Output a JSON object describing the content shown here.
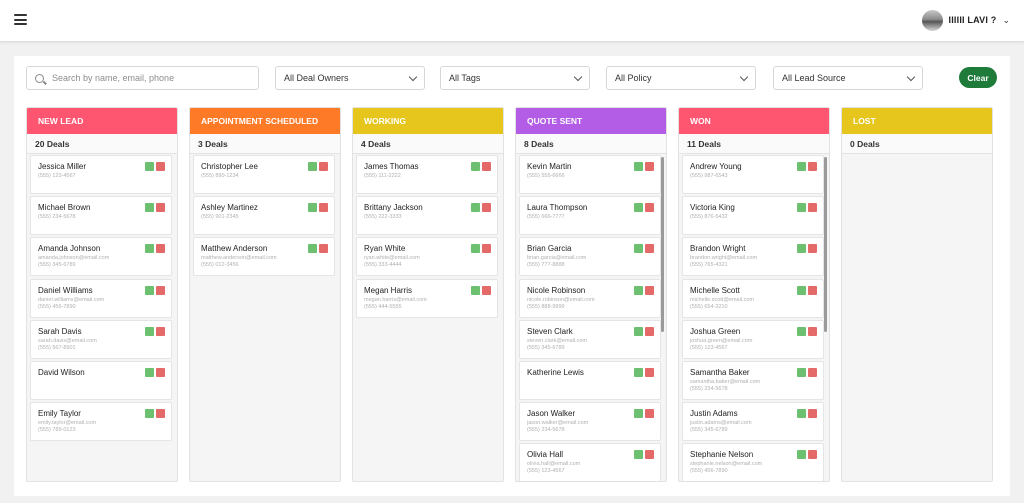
{
  "topbar": {
    "menu_icon": "hamburger-icon",
    "user_name": "IIIIII LAVI ?",
    "user_caret": "⌄"
  },
  "filters": {
    "search_placeholder": "Search by name, email, phone",
    "deal_owners": "All Deal Owners",
    "tags": "All Tags",
    "policy": "All Policy",
    "lead_source": "All Lead Source",
    "clear_label": "Clear"
  },
  "colors": {
    "new_lead": "#fe5570",
    "appointment_scheduled": "#fe7a27",
    "working": "#e6c51d",
    "quote_sent": "#b35de6",
    "won": "#fe5570",
    "lost": "#e6c51d",
    "clear_button": "#1e7b3a"
  },
  "columns": [
    {
      "title": "NEW LEAD",
      "count": "20 Deals",
      "cards": [
        {
          "name": "Jessica Miller",
          "email": "",
          "phone": "(555) 123-4567"
        },
        {
          "name": "Michael Brown",
          "email": "",
          "phone": "(555) 234-5678"
        },
        {
          "name": "Amanda Johnson",
          "email": "amanda.johnson@email.com",
          "phone": "(555) 345-6789"
        },
        {
          "name": "Daniel Williams",
          "email": "daniel.williams@email.com",
          "phone": "(555) 456-7890"
        },
        {
          "name": "Sarah Davis",
          "email": "sarah.davis@email.com",
          "phone": "(555) 567-8901"
        },
        {
          "name": "David Wilson",
          "email": "",
          "phone": ""
        },
        {
          "name": "Emily Taylor",
          "email": "emily.taylor@email.com",
          "phone": "(555) 789-0123"
        }
      ]
    },
    {
      "title": "APPOINTMENT SCHEDULED",
      "count": "3 Deals",
      "cards": [
        {
          "name": "Christopher Lee",
          "email": "",
          "phone": "(555) 890-1234"
        },
        {
          "name": "Ashley Martinez",
          "email": "",
          "phone": "(555) 901-2345"
        },
        {
          "name": "Matthew Anderson",
          "email": "matthew.anderson@email.com",
          "phone": "(555) 012-3456"
        }
      ]
    },
    {
      "title": "WORKING",
      "count": "4 Deals",
      "cards": [
        {
          "name": "James Thomas",
          "email": "",
          "phone": "(555) 111-2222"
        },
        {
          "name": "Brittany Jackson",
          "email": "",
          "phone": "(555) 222-3333"
        },
        {
          "name": "Ryan White",
          "email": "ryan.white@email.com",
          "phone": "(555) 333-4444"
        },
        {
          "name": "Megan Harris",
          "email": "megan.harris@email.com",
          "phone": "(555) 444-5555"
        }
      ]
    },
    {
      "title": "QUOTE SENT",
      "count": "8 Deals",
      "cards": [
        {
          "name": "Kevin Martin",
          "email": "",
          "phone": "(555) 555-6666"
        },
        {
          "name": "Laura Thompson",
          "email": "",
          "phone": "(555) 666-7777"
        },
        {
          "name": "Brian Garcia",
          "email": "brian.garcia@email.com",
          "phone": "(555) 777-8888"
        },
        {
          "name": "Nicole Robinson",
          "email": "nicole.robinson@email.com",
          "phone": "(555) 888-9999"
        },
        {
          "name": "Steven Clark",
          "email": "steven.clark@email.com",
          "phone": "(555) 345-6789"
        },
        {
          "name": "Katherine Lewis",
          "email": "",
          "phone": ""
        },
        {
          "name": "Jason Walker",
          "email": "jason.walker@email.com",
          "phone": "(555) 234-5678"
        },
        {
          "name": "Olivia Hall",
          "email": "olivia.hall@email.com",
          "phone": "(555) 123-4567"
        }
      ]
    },
    {
      "title": "WON",
      "count": "11 Deals",
      "cards": [
        {
          "name": "Andrew Young",
          "email": "",
          "phone": "(555) 987-6543"
        },
        {
          "name": "Victoria King",
          "email": "",
          "phone": "(555) 876-5432"
        },
        {
          "name": "Brandon Wright",
          "email": "brandon.wright@email.com",
          "phone": "(555) 765-4321"
        },
        {
          "name": "Michelle Scott",
          "email": "michelle.scott@email.com",
          "phone": "(555) 654-3210"
        },
        {
          "name": "Joshua Green",
          "email": "joshua.green@email.com",
          "phone": "(555) 123-4567"
        },
        {
          "name": "Samantha Baker",
          "email": "samantha.baker@email.com",
          "phone": "(555) 234-5678"
        },
        {
          "name": "Justin Adams",
          "email": "justin.adams@email.com",
          "phone": "(555) 345-6789"
        },
        {
          "name": "Stephanie Nelson",
          "email": "stephanie.nelson@email.com",
          "phone": "(555) 456-7890"
        }
      ]
    },
    {
      "title": "LOST",
      "count": "0 Deals",
      "cards": []
    }
  ]
}
